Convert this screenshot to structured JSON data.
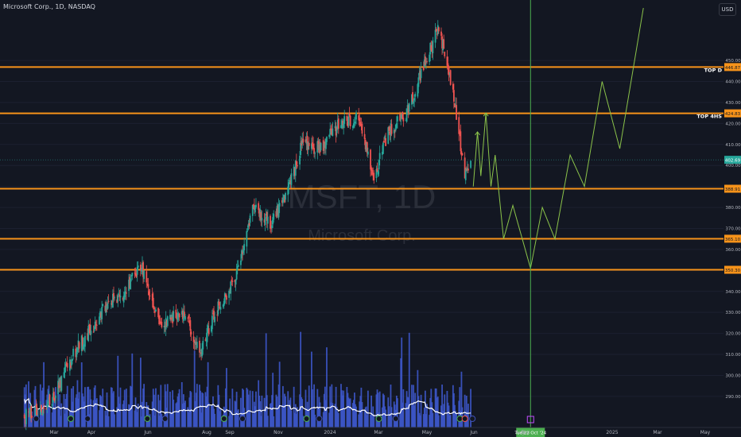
{
  "header": {
    "symbol_info": "Microsoft Corp., 1D, NASDAQ",
    "currency": "USD"
  },
  "watermark": {
    "ticker": "MSFT, 1D",
    "name": "Microsoft Corp."
  },
  "colors": {
    "background": "#131722",
    "up": "#26a69a",
    "down": "#ef5350",
    "level": "#f7931a",
    "projection": "#8bc34a",
    "volume": "#3d56c9",
    "volume_ma": "#ffffff",
    "last_price": "#26a69a",
    "date_marker": "#4caf50"
  },
  "chart_data": {
    "type": "candlestick",
    "y_axis": {
      "ylim": [
        282,
        472
      ],
      "ticks": [
        290,
        300,
        310,
        320,
        330,
        340,
        350,
        360,
        370,
        380,
        390,
        400,
        410,
        420,
        430,
        440,
        450
      ],
      "side": "right"
    },
    "x_axis": {
      "tick_labels": [
        "Mar",
        "Apr",
        "Jun",
        "Aug",
        "Sep",
        "Nov",
        "2024",
        "Mar",
        "May",
        "Jun",
        "Aug",
        "Sep",
        "Tue 22 Oct '24",
        "2025",
        "Mar",
        "May"
      ]
    },
    "price_path": [
      {
        "date": "2023-03",
        "close": 280
      },
      {
        "date": "2023-04",
        "close": 287
      },
      {
        "date": "2023-05",
        "close": 312
      },
      {
        "date": "2023-06-10",
        "close": 335
      },
      {
        "date": "2023-06-28",
        "close": 340
      },
      {
        "date": "2023-07-18",
        "close": 352
      },
      {
        "date": "2023-08-10",
        "close": 325
      },
      {
        "date": "2023-09-05",
        "close": 330
      },
      {
        "date": "2023-09-26",
        "close": 312
      },
      {
        "date": "2023-10-20",
        "close": 335
      },
      {
        "date": "2023-11-05",
        "close": 345
      },
      {
        "date": "2023-11-28",
        "close": 380
      },
      {
        "date": "2023-12-18",
        "close": 372
      },
      {
        "date": "2024-01-08",
        "close": 388
      },
      {
        "date": "2024-01-25",
        "close": 410
      },
      {
        "date": "2024-02-15",
        "close": 408
      },
      {
        "date": "2024-03-10",
        "close": 420
      },
      {
        "date": "2024-03-30",
        "close": 422
      },
      {
        "date": "2024-04-20",
        "close": 395
      },
      {
        "date": "2024-05-05",
        "close": 415
      },
      {
        "date": "2024-05-28",
        "close": 425
      },
      {
        "date": "2024-06-20",
        "close": 450
      },
      {
        "date": "2024-07-05",
        "close": 466
      },
      {
        "date": "2024-07-20",
        "close": 440
      },
      {
        "date": "2024-08-05",
        "close": 395
      },
      {
        "date": "2024-08-12",
        "close": 402.69
      }
    ],
    "levels": [
      {
        "value": 446.87,
        "label": "446.87",
        "note": "TOP D"
      },
      {
        "value": 424.83,
        "label": "424.83",
        "note": "TOP 4HS"
      },
      {
        "value": 388.91,
        "label": "388.91",
        "note": ""
      },
      {
        "value": 365.1,
        "label": "365.10",
        "note": ""
      },
      {
        "value": 350.3,
        "label": "350.30",
        "note": ""
      }
    ],
    "last_price": {
      "value": 402.69,
      "label": "402.69"
    },
    "projection": [
      {
        "date": "2024-08-15",
        "value": 390
      },
      {
        "date": "2024-08-20",
        "value": 416
      },
      {
        "date": "2024-08-24",
        "value": 395
      },
      {
        "date": "2024-08-30",
        "value": 425
      },
      {
        "date": "2024-09-05",
        "value": 390
      },
      {
        "date": "2024-09-10",
        "value": 405
      },
      {
        "date": "2024-09-20",
        "value": 365
      },
      {
        "date": "2024-10-01",
        "value": 381
      },
      {
        "date": "2024-10-22",
        "value": 351
      },
      {
        "date": "2024-11-05",
        "value": 380
      },
      {
        "date": "2024-11-20",
        "value": 365
      },
      {
        "date": "2024-12-08",
        "value": 405
      },
      {
        "date": "2024-12-25",
        "value": 390
      },
      {
        "date": "2025-01-15",
        "value": 440
      },
      {
        "date": "2025-02-05",
        "value": 408
      },
      {
        "date": "2025-03-05",
        "value": 475
      }
    ],
    "vertical_marker": {
      "date": "2024-10-22",
      "label": "Tue 22 Oct '24"
    },
    "volume": {
      "description": "daily volume bars with moving average line",
      "overlay": true
    }
  }
}
